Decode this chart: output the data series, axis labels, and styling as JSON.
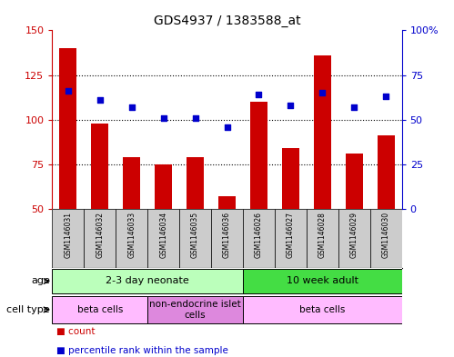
{
  "title": "GDS4937 / 1383588_at",
  "samples": [
    "GSM1146031",
    "GSM1146032",
    "GSM1146033",
    "GSM1146034",
    "GSM1146035",
    "GSM1146036",
    "GSM1146026",
    "GSM1146027",
    "GSM1146028",
    "GSM1146029",
    "GSM1146030"
  ],
  "count_values": [
    140,
    98,
    79,
    75,
    79,
    57,
    110,
    84,
    136,
    81,
    91
  ],
  "percentile_values": [
    66,
    61,
    57,
    51,
    51,
    46,
    64,
    58,
    65,
    57,
    63
  ],
  "ylim_left": [
    50,
    150
  ],
  "ylim_right": [
    0,
    100
  ],
  "yticks_left": [
    50,
    75,
    100,
    125,
    150
  ],
  "yticks_right": [
    0,
    25,
    50,
    75,
    100
  ],
  "ytick_labels_left": [
    "50",
    "75",
    "100",
    "125",
    "150"
  ],
  "ytick_labels_right": [
    "0",
    "25",
    "50",
    "75",
    "100%"
  ],
  "bar_color": "#cc0000",
  "dot_color": "#0000cc",
  "bg_color": "#ffffff",
  "age_groups": [
    {
      "label": "2-3 day neonate",
      "start": 0,
      "end": 6,
      "color": "#bbffbb"
    },
    {
      "label": "10 week adult",
      "start": 6,
      "end": 11,
      "color": "#44dd44"
    }
  ],
  "cell_type_groups": [
    {
      "label": "beta cells",
      "start": 0,
      "end": 3,
      "color": "#ffbbff"
    },
    {
      "label": "non-endocrine islet\ncells",
      "start": 3,
      "end": 6,
      "color": "#dd88dd"
    },
    {
      "label": "beta cells",
      "start": 6,
      "end": 11,
      "color": "#ffbbff"
    }
  ],
  "legend_items": [
    {
      "color": "#cc0000",
      "label": "count"
    },
    {
      "color": "#0000cc",
      "label": "percentile rank within the sample"
    }
  ],
  "sample_bg_color": "#cccccc",
  "age_label": "age",
  "cell_type_label": "cell type"
}
